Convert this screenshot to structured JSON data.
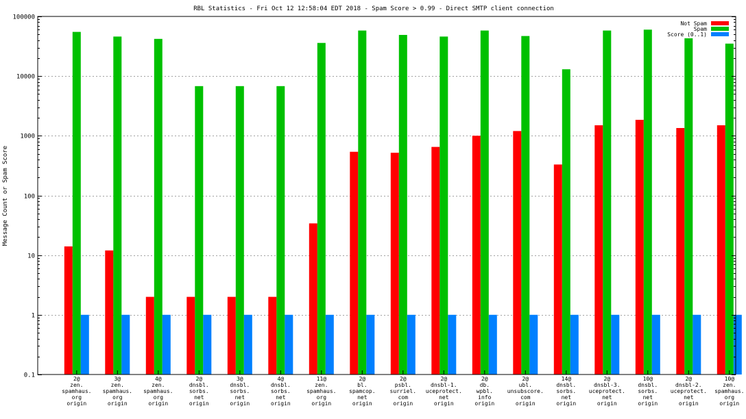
{
  "chart_data": {
    "type": "bar",
    "title": "RBL Statistics - Fri Oct 12 12:58:04 EDT 2018 - Spam Score > 0.99 - Direct SMTP client connection",
    "xlabel": "",
    "ylabel": "Message Count or Spam Score",
    "yscale": "log",
    "ylim": [
      0.1,
      100000
    ],
    "yticks": [
      "0.1",
      "1",
      "10",
      "100",
      "1000",
      "10000",
      "100000"
    ],
    "grid": true,
    "legend_position": "top-right",
    "categories": [
      [
        "2@",
        "zen.",
        "spamhaus.",
        "org",
        "origin"
      ],
      [
        "3@",
        "zen.",
        "spamhaus.",
        "org",
        "origin"
      ],
      [
        "4@",
        "zen.",
        "spamhaus.",
        "org",
        "origin"
      ],
      [
        "2@",
        "dnsbl.",
        "sorbs.",
        "net",
        "origin"
      ],
      [
        "3@",
        "dnsbl.",
        "sorbs.",
        "net",
        "origin"
      ],
      [
        "4@",
        "dnsbl.",
        "sorbs.",
        "net",
        "origin"
      ],
      [
        "11@",
        "zen.",
        "spamhaus.",
        "org",
        "origin"
      ],
      [
        "2@",
        "bl.",
        "spamcop.",
        "net",
        "origin"
      ],
      [
        "2@",
        "psbl.",
        "surriel.",
        "com",
        "origin"
      ],
      [
        "2@",
        "dnsbl-1.",
        "uceprotect.",
        "net",
        "origin"
      ],
      [
        "2@",
        "db.",
        "wpbl.",
        "info",
        "origin"
      ],
      [
        "2@",
        "ubl.",
        "unsubscore.",
        "com",
        "origin"
      ],
      [
        "14@",
        "dnsbl.",
        "sorbs.",
        "net",
        "origin"
      ],
      [
        "2@",
        "dnsbl-3.",
        "uceprotect.",
        "net",
        "origin"
      ],
      [
        "10@",
        "dnsbl.",
        "sorbs.",
        "net",
        "origin"
      ],
      [
        "2@",
        "dnsbl-2.",
        "uceprotect.",
        "net",
        "origin"
      ],
      [
        "10@",
        "zen.",
        "spamhaus.",
        "org",
        "origin"
      ]
    ],
    "series": [
      {
        "name": "Not Spam",
        "color": "#ff0000",
        "values": [
          14,
          12,
          2,
          2,
          2,
          2,
          34,
          540,
          520,
          650,
          1000,
          1200,
          330,
          1500,
          1850,
          1350,
          1500
        ]
      },
      {
        "name": "Spam",
        "color": "#00c000",
        "values": [
          55000,
          46000,
          42000,
          6800,
          6800,
          6800,
          36000,
          58000,
          49000,
          46000,
          58000,
          47000,
          13000,
          58000,
          60000,
          43000,
          35000
        ]
      },
      {
        "name": "Score (0..1)",
        "color": "#0080ff",
        "values": [
          1,
          1,
          1,
          1,
          1,
          1,
          1,
          1,
          1,
          1,
          1,
          1,
          1,
          1,
          1,
          1,
          1
        ]
      }
    ]
  }
}
